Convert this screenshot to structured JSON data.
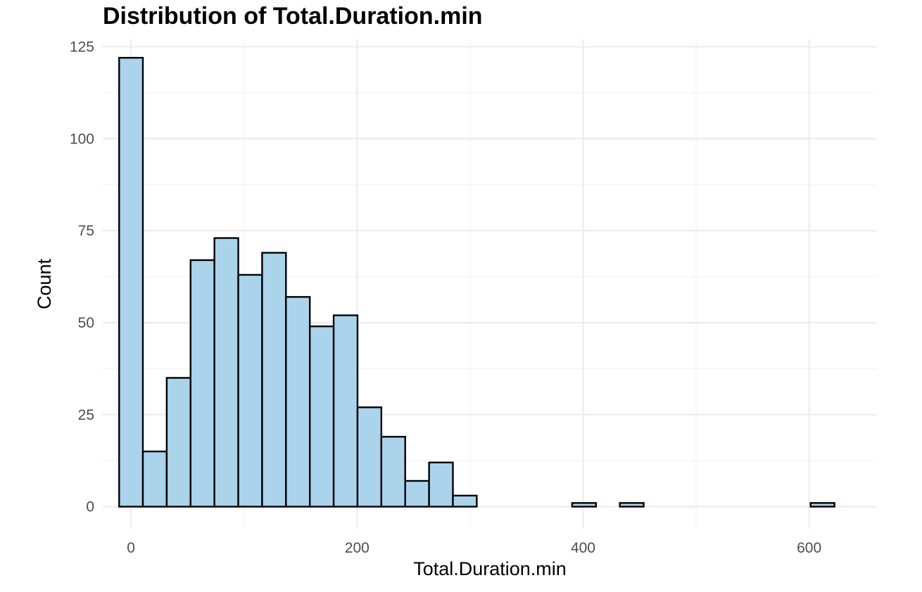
{
  "chart_data": {
    "type": "bar",
    "title": "Distribution of Total.Duration.min",
    "xlabel": "Total.Duration.min",
    "ylabel": "Count",
    "xlim": [
      -25,
      660
    ],
    "ylim": [
      -6,
      127
    ],
    "x_ticks": [
      0,
      200,
      400,
      600
    ],
    "y_ticks": [
      0,
      25,
      50,
      75,
      100,
      125
    ],
    "x_minor_ticks": [
      100,
      300,
      500
    ],
    "y_minor_ticks": [
      12.5,
      37.5,
      62.5,
      87.5,
      112.5
    ],
    "grid": true,
    "bar_color": "#abd3ec",
    "edge_color": "#000000",
    "bins": [
      {
        "x0": -10.5,
        "x1": 10.5,
        "count": 122
      },
      {
        "x0": 10.5,
        "x1": 31.6,
        "count": 15
      },
      {
        "x0": 31.6,
        "x1": 52.7,
        "count": 35
      },
      {
        "x0": 52.7,
        "x1": 73.8,
        "count": 67
      },
      {
        "x0": 73.8,
        "x1": 94.9,
        "count": 73
      },
      {
        "x0": 94.9,
        "x1": 116.0,
        "count": 63
      },
      {
        "x0": 116.0,
        "x1": 137.1,
        "count": 69
      },
      {
        "x0": 137.1,
        "x1": 158.2,
        "count": 57
      },
      {
        "x0": 158.2,
        "x1": 179.3,
        "count": 49
      },
      {
        "x0": 179.3,
        "x1": 200.4,
        "count": 52
      },
      {
        "x0": 200.4,
        "x1": 221.5,
        "count": 27
      },
      {
        "x0": 221.5,
        "x1": 242.6,
        "count": 19
      },
      {
        "x0": 242.6,
        "x1": 263.7,
        "count": 7
      },
      {
        "x0": 263.7,
        "x1": 284.8,
        "count": 12
      },
      {
        "x0": 284.8,
        "x1": 305.9,
        "count": 3
      },
      {
        "x0": 305.9,
        "x1": 327.0,
        "count": 0
      },
      {
        "x0": 327.0,
        "x1": 348.1,
        "count": 0
      },
      {
        "x0": 348.1,
        "x1": 369.2,
        "count": 0
      },
      {
        "x0": 369.2,
        "x1": 390.3,
        "count": 0
      },
      {
        "x0": 390.3,
        "x1": 411.4,
        "count": 1
      },
      {
        "x0": 411.4,
        "x1": 432.5,
        "count": 0
      },
      {
        "x0": 432.5,
        "x1": 453.6,
        "count": 1
      },
      {
        "x0": 453.6,
        "x1": 474.7,
        "count": 0
      },
      {
        "x0": 474.7,
        "x1": 495.8,
        "count": 0
      },
      {
        "x0": 495.8,
        "x1": 516.9,
        "count": 0
      },
      {
        "x0": 516.9,
        "x1": 538.0,
        "count": 0
      },
      {
        "x0": 538.0,
        "x1": 559.1,
        "count": 0
      },
      {
        "x0": 559.1,
        "x1": 580.2,
        "count": 0
      },
      {
        "x0": 580.2,
        "x1": 601.3,
        "count": 0
      },
      {
        "x0": 601.3,
        "x1": 622.4,
        "count": 1
      }
    ]
  }
}
